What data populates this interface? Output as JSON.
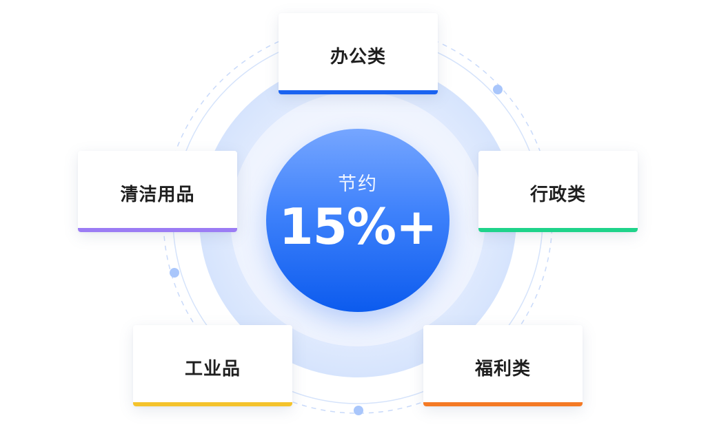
{
  "center": {
    "label": "节约",
    "value": "15%+"
  },
  "categories": [
    {
      "id": "office",
      "label": "办公类",
      "accent": "#1a63f0"
    },
    {
      "id": "cleaning",
      "label": "清洁用品",
      "accent": "#9b7cf4"
    },
    {
      "id": "admin",
      "label": "行政类",
      "accent": "#1fd38a"
    },
    {
      "id": "industry",
      "label": "工业品",
      "accent": "#f4c32c"
    },
    {
      "id": "welfare",
      "label": "福利类",
      "accent": "#f47a25"
    }
  ],
  "colors": {
    "ring_line": "#d5e3fb",
    "ring_dashed": "#c9dafa",
    "dot": "#a9c6fb",
    "glow_outer": "#e6eefd",
    "glow_inner": "#d3e2fd",
    "center_top": "#76a6ff",
    "center_bottom": "#0c5bee"
  }
}
